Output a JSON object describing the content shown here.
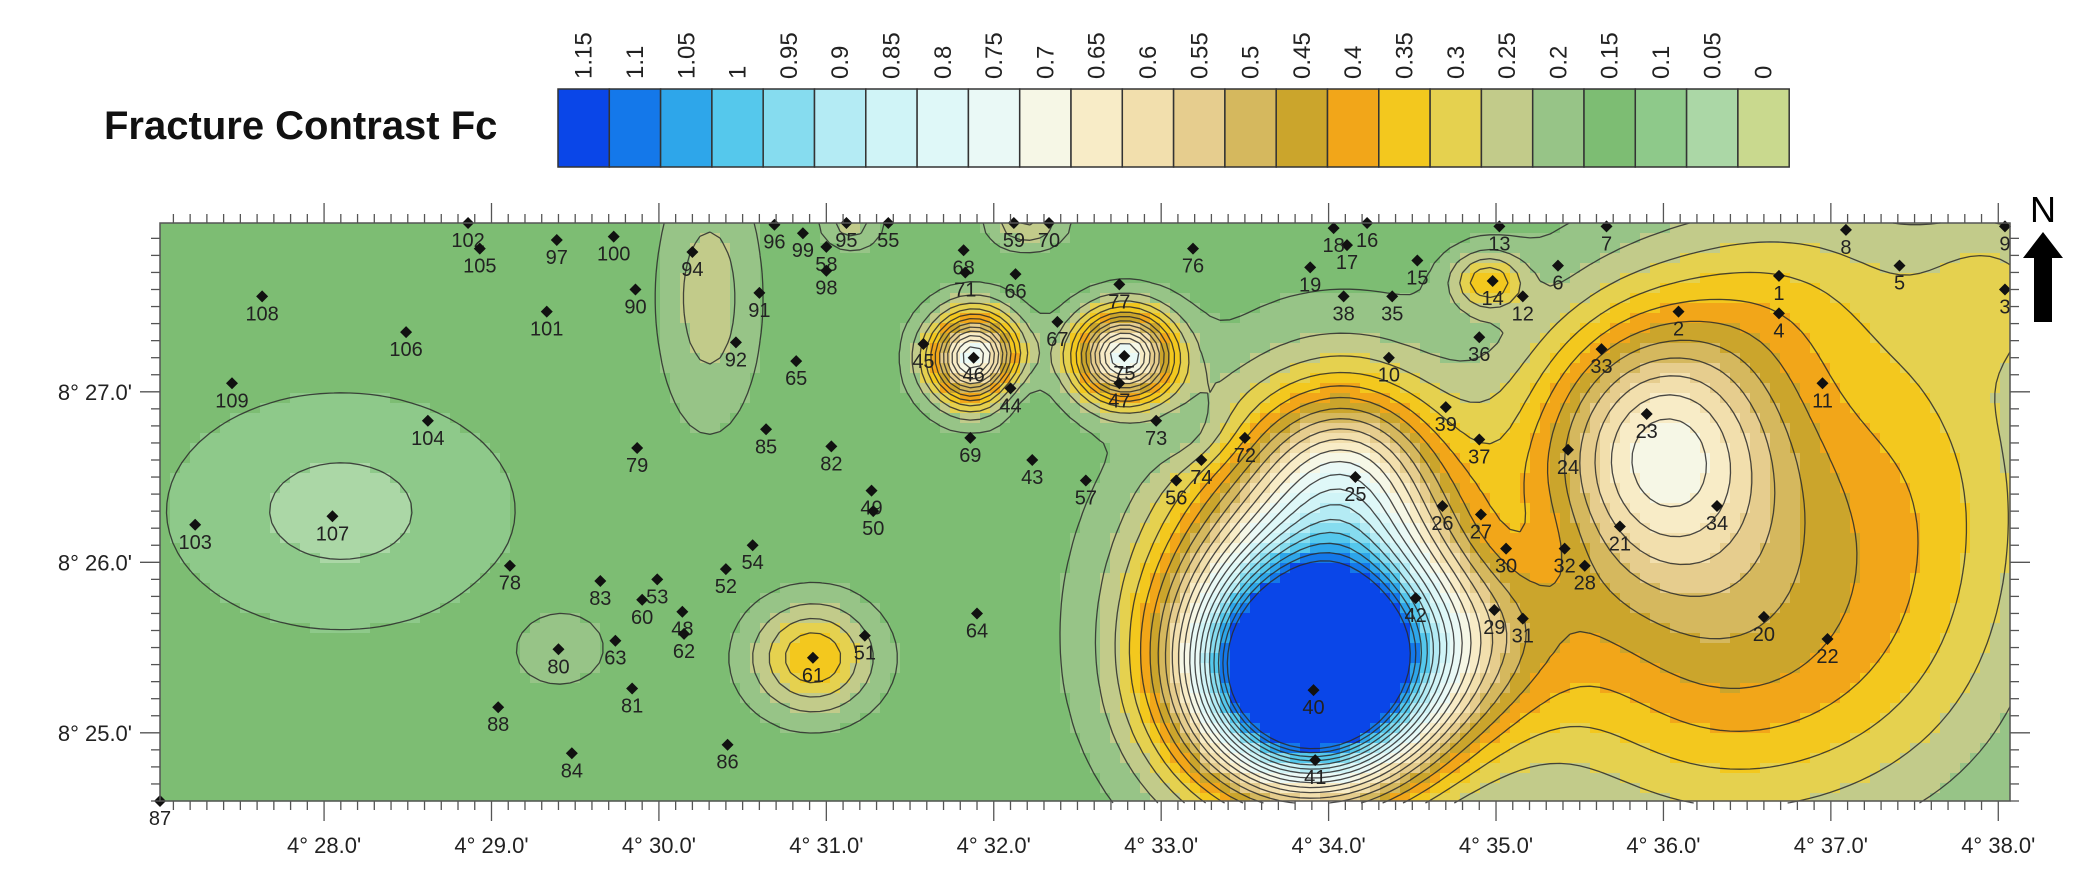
{
  "legend": {
    "title": "Fracture Contrast Fc",
    "levels": [
      {
        "label": "1.15",
        "color": "#0a46e8"
      },
      {
        "label": "1.1",
        "color": "#1478ea"
      },
      {
        "label": "1.05",
        "color": "#2ea6ea"
      },
      {
        "label": "1",
        "color": "#55c8ec"
      },
      {
        "label": "0.95",
        "color": "#86dcef"
      },
      {
        "label": "0.9",
        "color": "#b4ebf4"
      },
      {
        "label": "0.85",
        "color": "#d0f4f7"
      },
      {
        "label": "0.8",
        "color": "#dff8f8"
      },
      {
        "label": "0.75",
        "color": "#eaf9f6"
      },
      {
        "label": "0.7",
        "color": "#f6f7e6"
      },
      {
        "label": "0.65",
        "color": "#f8ecc7"
      },
      {
        "label": "0.6",
        "color": "#f2dfad"
      },
      {
        "label": "0.55",
        "color": "#e6cd8e"
      },
      {
        "label": "0.5",
        "color": "#d5b85e"
      },
      {
        "label": "0.45",
        "color": "#cba52c"
      },
      {
        "label": "0.4",
        "color": "#f2a619"
      },
      {
        "label": "0.35",
        "color": "#f3c81e"
      },
      {
        "label": "0.3",
        "color": "#e5d14f"
      },
      {
        "label": "0.25",
        "color": "#c2cb8a"
      },
      {
        "label": "0.2",
        "color": "#97c487"
      },
      {
        "label": "0.15",
        "color": "#7dbd73"
      },
      {
        "label": "0.1",
        "color": "#8ec98a"
      },
      {
        "label": "0.05",
        "color": "#abd7a6"
      },
      {
        "label": "0",
        "color": "#c9d98e"
      }
    ]
  },
  "map": {
    "north_label": "N",
    "x_axis": {
      "ticks": [
        {
          "label": "4° 28.0'",
          "min": 28.0
        },
        {
          "label": "4° 29.0'",
          "min": 29.0
        },
        {
          "label": "4° 30.0'",
          "min": 30.0
        },
        {
          "label": "4° 31.0'",
          "min": 31.0
        },
        {
          "label": "4° 32.0'",
          "min": 32.0
        },
        {
          "label": "4° 33.0'",
          "min": 33.0
        },
        {
          "label": "4° 34.0'",
          "min": 34.0
        },
        {
          "label": "4° 35.0'",
          "min": 35.0
        },
        {
          "label": "4° 36.0'",
          "min": 36.0
        },
        {
          "label": "4° 37.0'",
          "min": 37.0
        },
        {
          "label": "4° 38.0'",
          "min": 38.0
        }
      ],
      "range": [
        27.02,
        38.07
      ]
    },
    "y_axis": {
      "ticks": [
        {
          "label": "8° 27.0'",
          "min": 27.0
        },
        {
          "label": "8° 26.0'",
          "min": 26.0
        },
        {
          "label": "8° 25.0'",
          "min": 25.0
        }
      ],
      "range": [
        24.6,
        27.99
      ]
    },
    "stations": [
      {
        "id": "1",
        "lon": 36.69,
        "lat": 27.68
      },
      {
        "id": "2",
        "lon": 36.09,
        "lat": 27.47
      },
      {
        "id": "3",
        "lon": 38.04,
        "lat": 27.6
      },
      {
        "id": "4",
        "lon": 36.69,
        "lat": 27.46
      },
      {
        "id": "5",
        "lon": 37.41,
        "lat": 27.74
      },
      {
        "id": "6",
        "lon": 35.37,
        "lat": 27.74
      },
      {
        "id": "7",
        "lon": 35.66,
        "lat": 27.97
      },
      {
        "id": "8",
        "lon": 37.09,
        "lat": 27.95
      },
      {
        "id": "9",
        "lon": 38.04,
        "lat": 27.97
      },
      {
        "id": "10",
        "lon": 34.36,
        "lat": 27.2
      },
      {
        "id": "11",
        "lon": 36.95,
        "lat": 27.05
      },
      {
        "id": "12",
        "lon": 35.16,
        "lat": 27.56
      },
      {
        "id": "13",
        "lon": 35.02,
        "lat": 27.97
      },
      {
        "id": "14",
        "lon": 34.98,
        "lat": 27.65
      },
      {
        "id": "15",
        "lon": 34.53,
        "lat": 27.77
      },
      {
        "id": "16",
        "lon": 34.23,
        "lat": 27.99
      },
      {
        "id": "17",
        "lon": 34.11,
        "lat": 27.86
      },
      {
        "id": "18",
        "lon": 34.03,
        "lat": 27.96
      },
      {
        "id": "19",
        "lon": 33.89,
        "lat": 27.73
      },
      {
        "id": "20",
        "lon": 36.6,
        "lat": 25.68
      },
      {
        "id": "21",
        "lon": 35.74,
        "lat": 26.21
      },
      {
        "id": "22",
        "lon": 36.98,
        "lat": 25.55
      },
      {
        "id": "23",
        "lon": 35.9,
        "lat": 26.87
      },
      {
        "id": "24",
        "lon": 35.43,
        "lat": 26.66
      },
      {
        "id": "25",
        "lon": 34.16,
        "lat": 26.5
      },
      {
        "id": "26",
        "lon": 34.68,
        "lat": 26.33
      },
      {
        "id": "27",
        "lon": 34.91,
        "lat": 26.28
      },
      {
        "id": "28",
        "lon": 35.53,
        "lat": 25.98
      },
      {
        "id": "29",
        "lon": 34.99,
        "lat": 25.72
      },
      {
        "id": "30",
        "lon": 35.06,
        "lat": 26.08
      },
      {
        "id": "31",
        "lon": 35.16,
        "lat": 25.67
      },
      {
        "id": "32",
        "lon": 35.41,
        "lat": 26.08
      },
      {
        "id": "33",
        "lon": 35.63,
        "lat": 27.25
      },
      {
        "id": "34",
        "lon": 36.32,
        "lat": 26.33
      },
      {
        "id": "35",
        "lon": 34.38,
        "lat": 27.56
      },
      {
        "id": "36",
        "lon": 34.9,
        "lat": 27.32
      },
      {
        "id": "37",
        "lon": 34.9,
        "lat": 26.72
      },
      {
        "id": "38",
        "lon": 34.09,
        "lat": 27.56
      },
      {
        "id": "39",
        "lon": 34.7,
        "lat": 26.91
      },
      {
        "id": "40",
        "lon": 33.91,
        "lat": 25.25
      },
      {
        "id": "41",
        "lon": 33.92,
        "lat": 24.84
      },
      {
        "id": "42",
        "lon": 34.52,
        "lat": 25.79
      },
      {
        "id": "43",
        "lon": 32.23,
        "lat": 26.6
      },
      {
        "id": "44",
        "lon": 32.1,
        "lat": 27.02
      },
      {
        "id": "45",
        "lon": 31.58,
        "lat": 27.28
      },
      {
        "id": "46",
        "lon": 31.88,
        "lat": 27.2
      },
      {
        "id": "47",
        "lon": 32.75,
        "lat": 27.05
      },
      {
        "id": "48",
        "lon": 30.14,
        "lat": 25.71
      },
      {
        "id": "49",
        "lon": 31.27,
        "lat": 26.42
      },
      {
        "id": "50",
        "lon": 31.28,
        "lat": 26.3
      },
      {
        "id": "51",
        "lon": 31.23,
        "lat": 25.57
      },
      {
        "id": "52",
        "lon": 30.4,
        "lat": 25.96
      },
      {
        "id": "53",
        "lon": 29.99,
        "lat": 25.9
      },
      {
        "id": "54",
        "lon": 30.56,
        "lat": 26.1
      },
      {
        "id": "55",
        "lon": 31.37,
        "lat": 27.99
      },
      {
        "id": "56",
        "lon": 33.09,
        "lat": 26.48
      },
      {
        "id": "57",
        "lon": 32.55,
        "lat": 26.48
      },
      {
        "id": "58",
        "lon": 31.0,
        "lat": 27.85
      },
      {
        "id": "59",
        "lon": 32.12,
        "lat": 27.99
      },
      {
        "id": "60",
        "lon": 29.9,
        "lat": 25.78
      },
      {
        "id": "61",
        "lon": 30.92,
        "lat": 25.44
      },
      {
        "id": "62",
        "lon": 30.15,
        "lat": 25.58
      },
      {
        "id": "63",
        "lon": 29.74,
        "lat": 25.54
      },
      {
        "id": "64",
        "lon": 31.9,
        "lat": 25.7
      },
      {
        "id": "65",
        "lon": 30.82,
        "lat": 27.18
      },
      {
        "id": "66",
        "lon": 32.13,
        "lat": 27.69
      },
      {
        "id": "67",
        "lon": 32.38,
        "lat": 27.41
      },
      {
        "id": "68",
        "lon": 31.82,
        "lat": 27.83
      },
      {
        "id": "69",
        "lon": 31.86,
        "lat": 26.73
      },
      {
        "id": "70",
        "lon": 32.33,
        "lat": 27.99
      },
      {
        "id": "71",
        "lon": 31.83,
        "lat": 27.7
      },
      {
        "id": "72",
        "lon": 33.5,
        "lat": 26.73
      },
      {
        "id": "73",
        "lon": 32.97,
        "lat": 26.83
      },
      {
        "id": "74",
        "lon": 33.24,
        "lat": 26.6
      },
      {
        "id": "75",
        "lon": 32.78,
        "lat": 27.21
      },
      {
        "id": "76",
        "lon": 33.19,
        "lat": 27.84
      },
      {
        "id": "77",
        "lon": 32.75,
        "lat": 27.63
      },
      {
        "id": "78",
        "lon": 29.11,
        "lat": 25.98
      },
      {
        "id": "79",
        "lon": 29.87,
        "lat": 26.67
      },
      {
        "id": "80",
        "lon": 29.4,
        "lat": 25.49
      },
      {
        "id": "81",
        "lon": 29.84,
        "lat": 25.26
      },
      {
        "id": "82",
        "lon": 31.03,
        "lat": 26.68
      },
      {
        "id": "83",
        "lon": 29.65,
        "lat": 25.89
      },
      {
        "id": "84",
        "lon": 29.48,
        "lat": 24.88
      },
      {
        "id": "85",
        "lon": 30.64,
        "lat": 26.78
      },
      {
        "id": "86",
        "lon": 30.41,
        "lat": 24.93
      },
      {
        "id": "87",
        "lon": 27.02,
        "lat": 24.6
      },
      {
        "id": "88",
        "lon": 29.04,
        "lat": 25.15
      },
      {
        "id": "90",
        "lon": 29.86,
        "lat": 27.6
      },
      {
        "id": "91",
        "lon": 30.6,
        "lat": 27.58
      },
      {
        "id": "92",
        "lon": 30.46,
        "lat": 27.29
      },
      {
        "id": "94",
        "lon": 30.2,
        "lat": 27.82
      },
      {
        "id": "95",
        "lon": 31.12,
        "lat": 27.99
      },
      {
        "id": "96",
        "lon": 30.69,
        "lat": 27.98
      },
      {
        "id": "97",
        "lon": 29.39,
        "lat": 27.89
      },
      {
        "id": "98",
        "lon": 31.0,
        "lat": 27.71
      },
      {
        "id": "99",
        "lon": 30.86,
        "lat": 27.93
      },
      {
        "id": "100",
        "lon": 29.73,
        "lat": 27.91
      },
      {
        "id": "101",
        "lon": 29.33,
        "lat": 27.47
      },
      {
        "id": "102",
        "lon": 28.86,
        "lat": 27.99
      },
      {
        "id": "103",
        "lon": 27.23,
        "lat": 26.22
      },
      {
        "id": "104",
        "lon": 28.62,
        "lat": 26.83
      },
      {
        "id": "105",
        "lon": 28.93,
        "lat": 27.84
      },
      {
        "id": "106",
        "lon": 28.49,
        "lat": 27.35
      },
      {
        "id": "107",
        "lon": 28.05,
        "lat": 26.27
      },
      {
        "id": "108",
        "lon": 27.63,
        "lat": 27.56
      },
      {
        "id": "109",
        "lon": 27.45,
        "lat": 27.05
      }
    ],
    "field_features": [
      {
        "lon": 33.9,
        "lat": 25.3,
        "value": 1.18,
        "sx": 0.45,
        "sy": 0.42
      },
      {
        "lon": 34.05,
        "lat": 25.9,
        "value": 0.55,
        "sx": 0.55,
        "sy": 0.7
      },
      {
        "lon": 34.1,
        "lat": 26.55,
        "value": 0.25,
        "sx": 0.35,
        "sy": 0.35
      },
      {
        "lon": 33.5,
        "lat": 25.6,
        "value": 0.28,
        "sx": 0.5,
        "sy": 0.6
      },
      {
        "lon": 34.7,
        "lat": 25.55,
        "value": 0.25,
        "sx": 0.5,
        "sy": 0.45
      },
      {
        "lon": 35.95,
        "lat": 26.7,
        "value": 0.42,
        "sx": 0.5,
        "sy": 0.55
      },
      {
        "lon": 36.35,
        "lat": 26.4,
        "value": 0.2,
        "sx": 0.8,
        "sy": 0.8
      },
      {
        "lon": 36.4,
        "lat": 25.3,
        "value": 0.22,
        "sx": 0.9,
        "sy": 0.7
      },
      {
        "lon": 37.6,
        "lat": 26.5,
        "value": 0.15,
        "sx": 0.6,
        "sy": 1.0
      },
      {
        "lon": 36.7,
        "lat": 27.6,
        "value": 0.1,
        "sx": 0.5,
        "sy": 0.4
      },
      {
        "lon": 31.88,
        "lat": 27.2,
        "value": 0.7,
        "sx": 0.18,
        "sy": 0.18
      },
      {
        "lon": 32.78,
        "lat": 27.21,
        "value": 0.7,
        "sx": 0.2,
        "sy": 0.18
      },
      {
        "lon": 30.92,
        "lat": 25.44,
        "value": 0.25,
        "sx": 0.25,
        "sy": 0.22
      },
      {
        "lon": 30.3,
        "lat": 27.55,
        "value": 0.12,
        "sx": 0.2,
        "sy": 0.5
      },
      {
        "lon": 34.95,
        "lat": 27.65,
        "value": 0.22,
        "sx": 0.15,
        "sy": 0.12
      },
      {
        "lon": 28.1,
        "lat": 26.3,
        "value": -0.1,
        "sx": 0.6,
        "sy": 0.4
      },
      {
        "lon": 35.1,
        "lat": 26.1,
        "value": -0.06,
        "sx": 0.3,
        "sy": 0.25
      },
      {
        "lon": 29.4,
        "lat": 25.5,
        "value": 0.06,
        "sx": 0.25,
        "sy": 0.2
      },
      {
        "lon": 32.1,
        "lat": 27.02,
        "value": -0.06,
        "sx": 0.12,
        "sy": 0.12
      },
      {
        "lon": 33.2,
        "lat": 26.75,
        "value": -0.05,
        "sx": 0.2,
        "sy": 0.15
      },
      {
        "lon": 38.0,
        "lat": 27.6,
        "value": 0.1,
        "sx": 0.3,
        "sy": 0.3
      },
      {
        "lon": 32.2,
        "lat": 27.99,
        "value": 0.15,
        "sx": 0.15,
        "sy": 0.1
      },
      {
        "lon": 31.15,
        "lat": 27.99,
        "value": 0.12,
        "sx": 0.12,
        "sy": 0.1
      }
    ],
    "field_base": 0.17,
    "contour_interval": 0.05
  }
}
